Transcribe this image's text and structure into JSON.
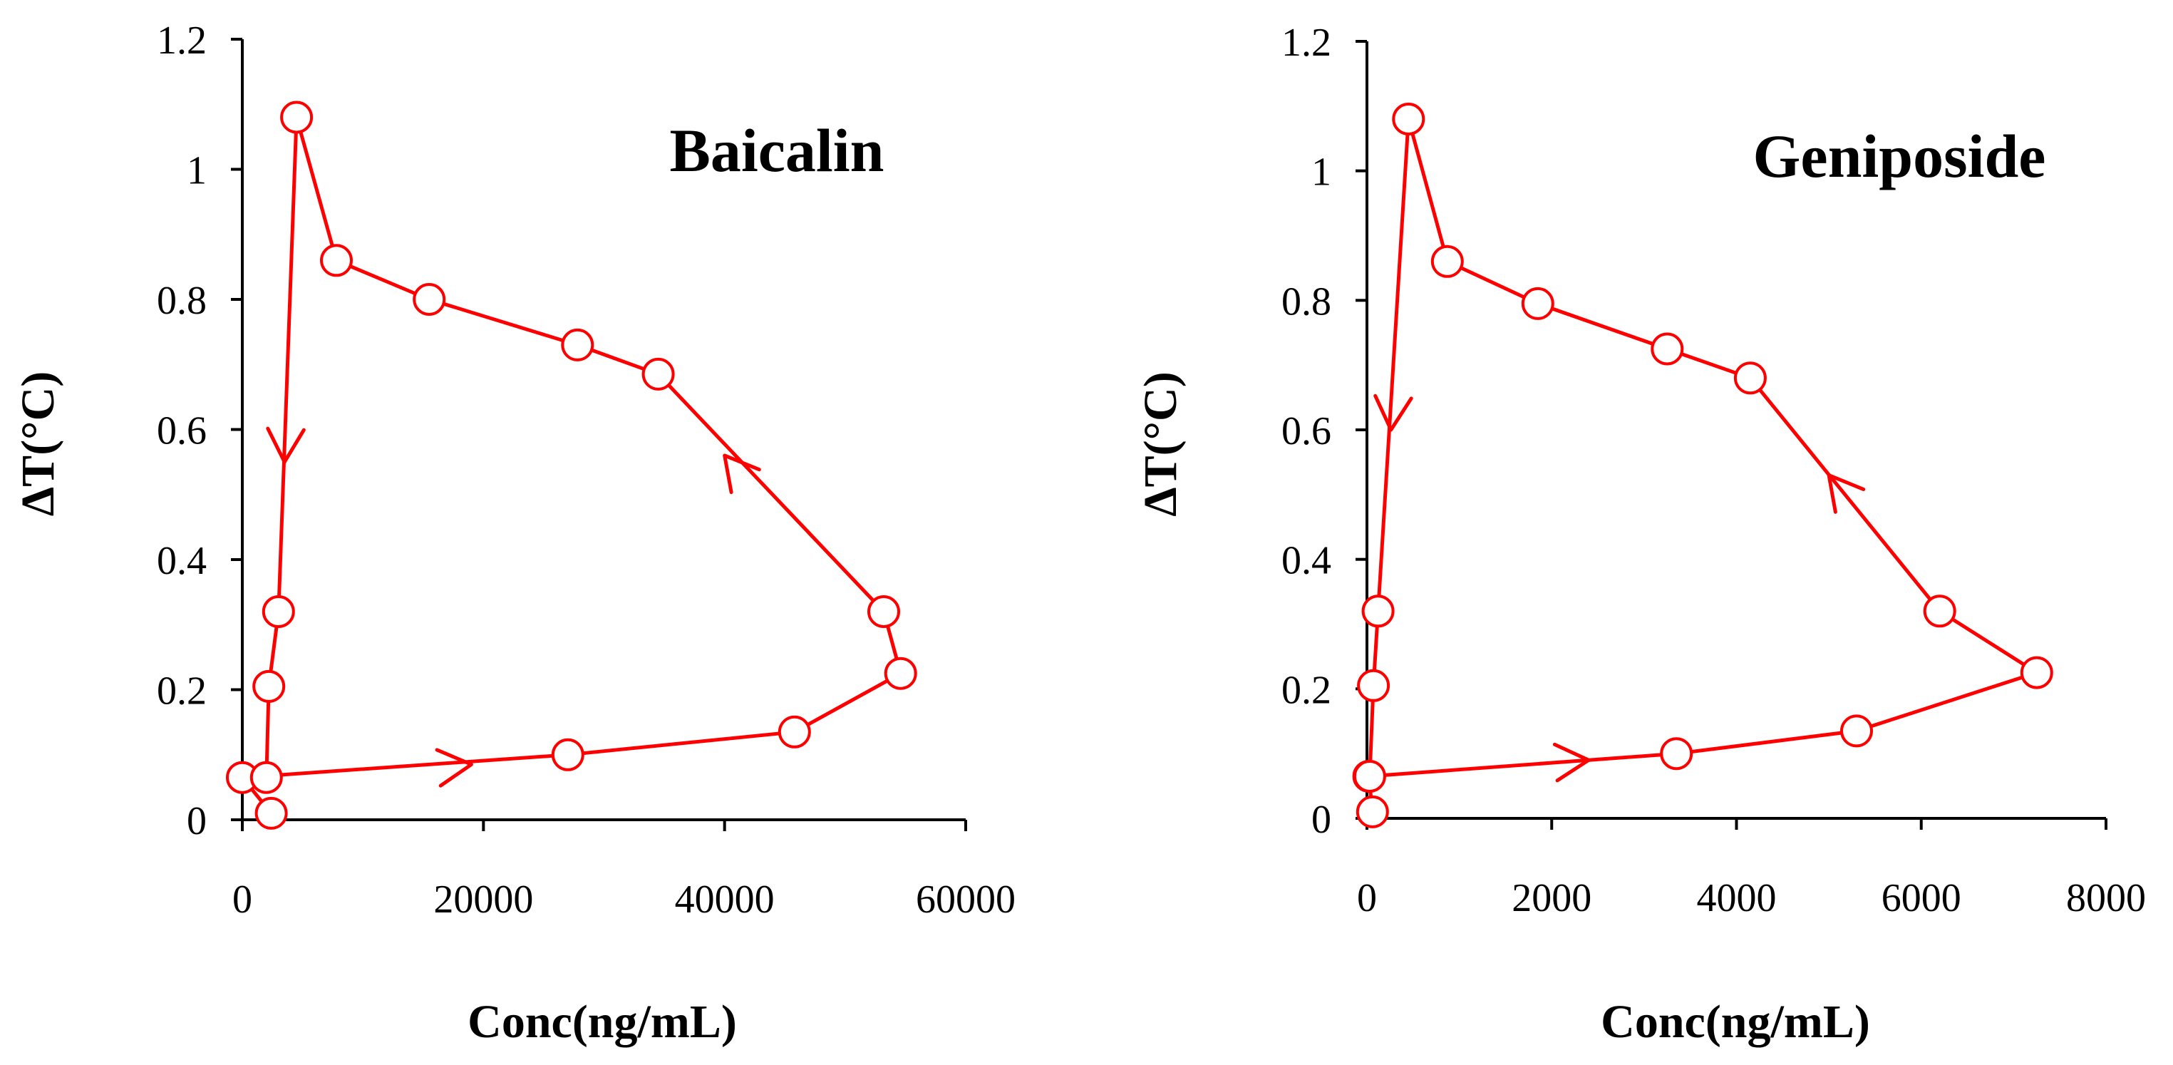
{
  "chart_data": [
    {
      "type": "line",
      "title": "Baicalin",
      "xlabel": "Conc(ng/mL)",
      "ylabel": "ΔT(°C)",
      "xlim": [
        0,
        60000
      ],
      "ylim": [
        0,
        1.2
      ],
      "x_ticks": [
        "0",
        "20000",
        "40000",
        "60000"
      ],
      "y_ticks": [
        "0",
        "0.2",
        "0.4",
        "0.6",
        "0.8",
        "1",
        "1.2"
      ],
      "points": [
        {
          "x": 2400,
          "y": 0.01
        },
        {
          "x": 0,
          "y": 0.065
        },
        {
          "x": 27000,
          "y": 0.1
        },
        {
          "x": 45800,
          "y": 0.135
        },
        {
          "x": 54600,
          "y": 0.225
        },
        {
          "x": 53200,
          "y": 0.32
        },
        {
          "x": 34500,
          "y": 0.685
        },
        {
          "x": 27800,
          "y": 0.73
        },
        {
          "x": 15500,
          "y": 0.8
        },
        {
          "x": 7800,
          "y": 0.86
        },
        {
          "x": 4500,
          "y": 1.08
        },
        {
          "x": 3000,
          "y": 0.32
        },
        {
          "x": 2200,
          "y": 0.205
        },
        {
          "x": 2000,
          "y": 0.065
        }
      ],
      "direction_arrows": [
        {
          "x": 19000,
          "y": 0.085,
          "toward_index": 2
        },
        {
          "x": 40000,
          "y": 0.56,
          "toward_index": 6
        },
        {
          "x": 3500,
          "y": 0.55,
          "toward_index": 11
        }
      ]
    },
    {
      "type": "line",
      "title": "Geniposide",
      "xlabel": "Conc(ng/mL)",
      "ylabel": "ΔT(°C)",
      "xlim": [
        0,
        8000
      ],
      "ylim": [
        0,
        1.2
      ],
      "x_ticks": [
        "0",
        "2000",
        "4000",
        "6000",
        "8000"
      ],
      "y_ticks": [
        "0",
        "0.2",
        "0.4",
        "0.6",
        "0.8",
        "1",
        "1.2"
      ],
      "points": [
        {
          "x": 60,
          "y": 0.01
        },
        {
          "x": 20,
          "y": 0.065
        },
        {
          "x": 3350,
          "y": 0.1
        },
        {
          "x": 5300,
          "y": 0.135
        },
        {
          "x": 7250,
          "y": 0.225
        },
        {
          "x": 6200,
          "y": 0.32
        },
        {
          "x": 4150,
          "y": 0.68
        },
        {
          "x": 3250,
          "y": 0.725
        },
        {
          "x": 1850,
          "y": 0.795
        },
        {
          "x": 870,
          "y": 0.86
        },
        {
          "x": 450,
          "y": 1.08
        },
        {
          "x": 120,
          "y": 0.32
        },
        {
          "x": 70,
          "y": 0.205
        },
        {
          "x": 30,
          "y": 0.065
        }
      ],
      "direction_arrows": [
        {
          "x": 2400,
          "y": 0.09,
          "toward_index": 2
        },
        {
          "x": 5000,
          "y": 0.53,
          "toward_index": 6
        },
        {
          "x": 260,
          "y": 0.6,
          "toward_index": 11
        }
      ]
    }
  ]
}
